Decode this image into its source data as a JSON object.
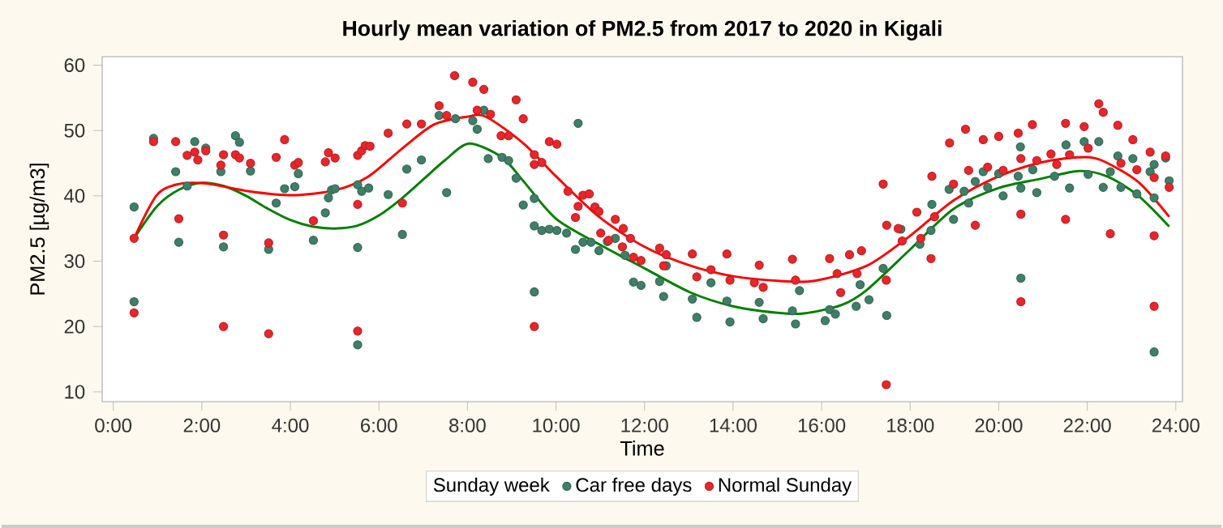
{
  "chart_data": {
    "type": "scatter",
    "title": "Hourly mean variation of PM2.5 from 2017 to 2020 in Kigali",
    "xlabel": "Time",
    "ylabel": "PM2.5 [µg/m3]",
    "legend_title": "Sunday week",
    "legend": "bottom",
    "grid": false,
    "xlim": [
      -0.25,
      24.15
    ],
    "ylim": [
      8.5,
      61.3
    ],
    "xticks": [
      {
        "value": 0,
        "label": "0:00"
      },
      {
        "value": 2,
        "label": "2:00"
      },
      {
        "value": 4,
        "label": "4:00"
      },
      {
        "value": 6,
        "label": "6:00"
      },
      {
        "value": 8,
        "label": "8:00"
      },
      {
        "value": 10,
        "label": "10:00"
      },
      {
        "value": 12,
        "label": "12:00"
      },
      {
        "value": 14,
        "label": "14:00"
      },
      {
        "value": 16,
        "label": "16:00"
      },
      {
        "value": 18,
        "label": "18:00"
      },
      {
        "value": 20,
        "label": "20:00"
      },
      {
        "value": 22,
        "label": "22:00"
      },
      {
        "value": 24,
        "label": "24:00"
      }
    ],
    "yticks": [
      10,
      20,
      30,
      40,
      50,
      60
    ],
    "series": [
      {
        "name": "Car free days",
        "marker": "circle",
        "color": "#3f7f68",
        "x": [
          0.47,
          0.47,
          0.91,
          1.41,
          1.48,
          1.84,
          1.67,
          2.09,
          2.43,
          2.49,
          2.76,
          2.85,
          3.1,
          3.51,
          3.68,
          3.87,
          4.1,
          4.18,
          4.52,
          4.79,
          4.86,
          4.93,
          5.01,
          5.52,
          5.52,
          5.61,
          5.77,
          5.52,
          6.21,
          6.53,
          6.63,
          6.96,
          7.36,
          7.53,
          7.73,
          8.12,
          8.22,
          8.37,
          8.47,
          8.78,
          8.93,
          9.1,
          9.26,
          9.51,
          9.51,
          9.68,
          9.85,
          10.02,
          10.24,
          9.51,
          10.5,
          10.44,
          10.61,
          10.79,
          10.97,
          11.16,
          11.34,
          11.56,
          11.75,
          11.92,
          12.34,
          12.43,
          12.49,
          13.08,
          13.18,
          13.5,
          13.86,
          13.93,
          14.59,
          14.68,
          15.34,
          15.41,
          15.5,
          16.08,
          16.18,
          16.31,
          16.78,
          16.87,
          17.07,
          17.39,
          17.47,
          17.79,
          18.22,
          18.47,
          18.49,
          18.98,
          18.88,
          19.22,
          19.32,
          19.47,
          19.65,
          19.75,
          20.0,
          20.1,
          20.44,
          20.49,
          20.5,
          20.5,
          20.77,
          20.86,
          21.26,
          21.52,
          21.6,
          21.93,
          22.02,
          22.26,
          22.36,
          22.52,
          22.69,
          22.76,
          23.03,
          23.12,
          23.42,
          23.51,
          23.51,
          23.51,
          23.77,
          23.85
        ],
        "values": [
          38.3,
          23.8,
          48.8,
          43.7,
          32.9,
          48.3,
          41.5,
          47.3,
          43.7,
          32.2,
          49.2,
          48.2,
          43.8,
          31.8,
          38.9,
          41.1,
          41.4,
          43.4,
          33.2,
          37.4,
          39.7,
          40.9,
          41.1,
          32.1,
          41.7,
          40.7,
          41.2,
          17.2,
          40.2,
          34.1,
          44.1,
          45.5,
          52.3,
          40.5,
          51.8,
          51.5,
          50.2,
          53.1,
          45.7,
          45.9,
          45.4,
          42.7,
          38.6,
          39.6,
          35.4,
          34.7,
          34.9,
          34.7,
          34.3,
          25.3,
          51.1,
          31.8,
          32.9,
          32.9,
          31.6,
          33.0,
          33.5,
          30.9,
          26.8,
          26.3,
          26.9,
          24.6,
          29.3,
          24.2,
          21.4,
          26.7,
          23.9,
          20.7,
          23.7,
          21.2,
          22.4,
          20.4,
          25.5,
          20.9,
          22.6,
          21.9,
          23.1,
          26.4,
          24.1,
          28.9,
          21.7,
          34.9,
          32.6,
          34.7,
          38.7,
          36.4,
          41.0,
          40.7,
          38.9,
          42.2,
          43.7,
          41.3,
          43.4,
          40.0,
          43.0,
          47.5,
          41.2,
          27.4,
          44.0,
          40.5,
          43.0,
          47.8,
          41.2,
          48.3,
          43.3,
          48.3,
          41.3,
          43.7,
          46.1,
          41.3,
          45.7,
          40.3,
          43.7,
          44.8,
          39.7,
          16.1,
          45.8,
          42.3
        ]
      },
      {
        "name": "Normal Sunday",
        "marker": "circle",
        "color": "#e8262a",
        "x": [
          0.47,
          0.47,
          0.91,
          1.41,
          1.48,
          1.67,
          1.84,
          1.91,
          2.09,
          2.49,
          2.43,
          2.49,
          2.49,
          2.76,
          2.85,
          3.1,
          3.51,
          3.51,
          3.68,
          3.87,
          4.1,
          4.18,
          4.52,
          4.79,
          4.86,
          5.01,
          5.52,
          5.52,
          5.61,
          5.69,
          5.8,
          5.52,
          6.21,
          6.53,
          6.63,
          6.96,
          7.36,
          7.53,
          7.71,
          8.12,
          8.37,
          8.22,
          8.52,
          8.76,
          8.93,
          9.1,
          9.26,
          9.51,
          9.51,
          9.68,
          9.85,
          10.02,
          9.51,
          10.27,
          10.44,
          10.5,
          10.61,
          10.75,
          10.88,
          10.97,
          11.01,
          11.19,
          11.34,
          11.52,
          11.5,
          11.68,
          11.75,
          11.92,
          12.34,
          12.43,
          12.49,
          13.08,
          13.18,
          13.5,
          13.86,
          13.93,
          14.48,
          14.59,
          14.68,
          15.34,
          15.41,
          16.18,
          16.35,
          16.43,
          16.63,
          16.8,
          16.9,
          17.39,
          17.46,
          17.47,
          17.46,
          17.73,
          17.82,
          18.15,
          18.24,
          18.47,
          18.49,
          18.55,
          18.89,
          18.98,
          19.25,
          19.32,
          19.47,
          19.65,
          19.75,
          20.0,
          20.1,
          20.44,
          20.5,
          20.5,
          20.5,
          20.76,
          20.86,
          21.18,
          21.31,
          21.51,
          21.51,
          21.6,
          21.93,
          22.02,
          22.26,
          22.36,
          22.52,
          22.69,
          22.76,
          23.03,
          23.12,
          23.42,
          23.51,
          23.51,
          23.51,
          23.77,
          23.85
        ],
        "values": [
          33.5,
          22.1,
          48.3,
          48.3,
          36.5,
          46.2,
          46.7,
          45.5,
          46.9,
          46.3,
          44.7,
          34.0,
          20.0,
          46.3,
          45.8,
          45.0,
          32.8,
          18.9,
          45.9,
          48.6,
          44.7,
          45.1,
          36.2,
          45.2,
          46.6,
          45.8,
          38.7,
          46.2,
          46.9,
          47.7,
          47.6,
          19.3,
          49.6,
          38.9,
          51.0,
          51.0,
          53.8,
          52.3,
          58.4,
          57.4,
          56.3,
          53.1,
          52.5,
          49.2,
          49.2,
          54.7,
          51.8,
          46.3,
          44.8,
          45.1,
          48.3,
          47.9,
          20.0,
          40.7,
          36.7,
          38.4,
          40.1,
          40.3,
          38.3,
          37.6,
          34.3,
          33.2,
          36.4,
          35.0,
          32.2,
          33.5,
          30.6,
          30.1,
          32.0,
          29.3,
          31.0,
          31.1,
          27.6,
          28.7,
          31.1,
          27.1,
          26.7,
          29.4,
          26.0,
          30.3,
          27.1,
          30.4,
          28.1,
          25.2,
          31.0,
          28.1,
          31.6,
          41.8,
          27.1,
          35.5,
          11.1,
          35.0,
          33.1,
          37.5,
          33.5,
          30.4,
          43.0,
          36.8,
          48.1,
          41.8,
          50.2,
          43.9,
          35.5,
          48.6,
          44.4,
          49.1,
          43.9,
          49.6,
          45.7,
          37.2,
          23.8,
          50.9,
          45.4,
          46.4,
          44.8,
          51.1,
          36.4,
          46.3,
          50.6,
          47.3,
          54.1,
          52.8,
          34.2,
          50.8,
          45.0,
          48.6,
          44.0,
          46.7,
          42.8,
          33.9,
          23.1,
          46.1,
          41.3
        ]
      },
      {
        "type": "line",
        "marker": "none",
        "color": "#008000",
        "x": [
          0.47,
          1.0,
          1.5,
          2.0,
          2.5,
          3.0,
          3.5,
          4.0,
          4.5,
          5.0,
          5.5,
          6.0,
          6.5,
          7.0,
          7.5,
          8.04,
          8.78,
          9.27,
          10.0,
          10.97,
          12.0,
          13.04,
          14.0,
          15.0,
          15.6,
          16.45,
          17.02,
          18.0,
          18.98,
          20.0,
          20.94,
          21.8,
          22.44,
          23.14,
          23.85
        ],
        "values": [
          33.5,
          38.5,
          41.0,
          42.0,
          41.5,
          40.0,
          38.0,
          36.3,
          35.3,
          35.0,
          35.4,
          37.0,
          39.5,
          42.5,
          45.5,
          48.0,
          45.9,
          42.2,
          36.5,
          32.6,
          28.9,
          25.2,
          23.1,
          22.1,
          22.0,
          23.3,
          25.6,
          31.8,
          38.0,
          41.2,
          42.6,
          43.8,
          43.0,
          40.1,
          35.3
        ]
      },
      {
        "type": "line",
        "marker": "none",
        "color": "#ff0000",
        "x": [
          0.47,
          0.98,
          1.47,
          2.09,
          3.07,
          4.05,
          5.03,
          5.77,
          6.5,
          7.24,
          7.98,
          8.42,
          9.27,
          10.0,
          10.97,
          12.0,
          13.04,
          14.0,
          15.0,
          15.84,
          17.02,
          18.0,
          18.98,
          20.0,
          20.94,
          21.8,
          22.3,
          23.14,
          23.85
        ],
        "values": [
          33.5,
          40.1,
          41.8,
          41.9,
          40.7,
          40.1,
          40.9,
          43.0,
          47.1,
          50.9,
          52.1,
          52.1,
          48.0,
          43.0,
          36.8,
          32.2,
          29.3,
          27.7,
          27.0,
          27.0,
          29.3,
          33.9,
          39.3,
          43.0,
          45.1,
          45.9,
          45.5,
          42.2,
          36.8
        ]
      }
    ]
  }
}
